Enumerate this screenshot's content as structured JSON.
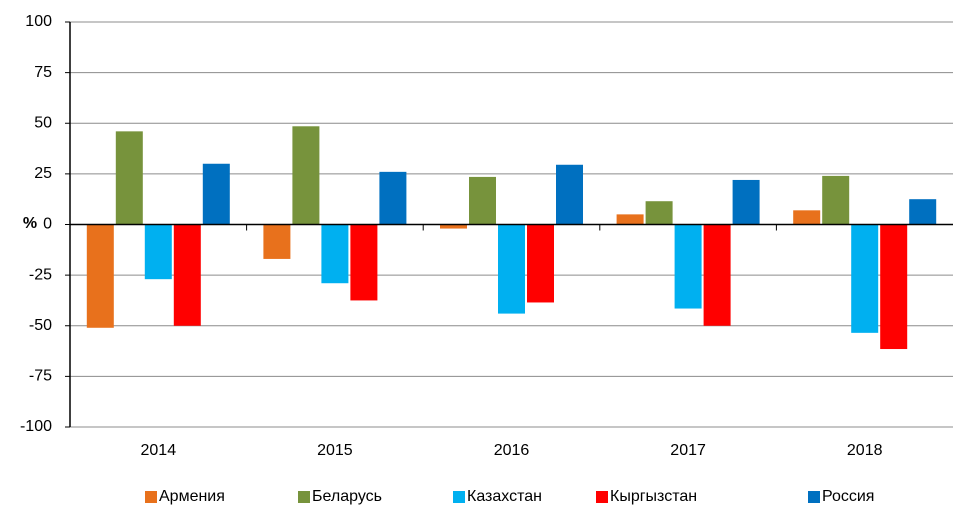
{
  "chart_data": {
    "type": "bar",
    "ylabel": "%",
    "categories": [
      "2014",
      "2015",
      "2016",
      "2017",
      "2018"
    ],
    "series": [
      {
        "name": "Армения",
        "color": "#e8711c",
        "values": [
          -51,
          -17,
          -2,
          5,
          7
        ]
      },
      {
        "name": "Беларусь",
        "color": "#77933c",
        "values": [
          46,
          48.5,
          23.5,
          11.5,
          24
        ]
      },
      {
        "name": "Казахстан",
        "color": "#00b0f0",
        "values": [
          -27,
          -29,
          -44,
          -41.5,
          -53.5
        ]
      },
      {
        "name": "Кыргызстан",
        "color": "#ff0000",
        "values": [
          -50,
          -37.5,
          -38.5,
          -50,
          -61.5
        ]
      },
      {
        "name": "Россия",
        "color": "#0070c0",
        "values": [
          30,
          26,
          29.5,
          22,
          12.5
        ]
      }
    ],
    "ylim": [
      -100,
      100
    ],
    "yticks": [
      -100,
      -75,
      -50,
      -25,
      0,
      25,
      50,
      75,
      100
    ],
    "grid": true,
    "legend": "bottom"
  }
}
